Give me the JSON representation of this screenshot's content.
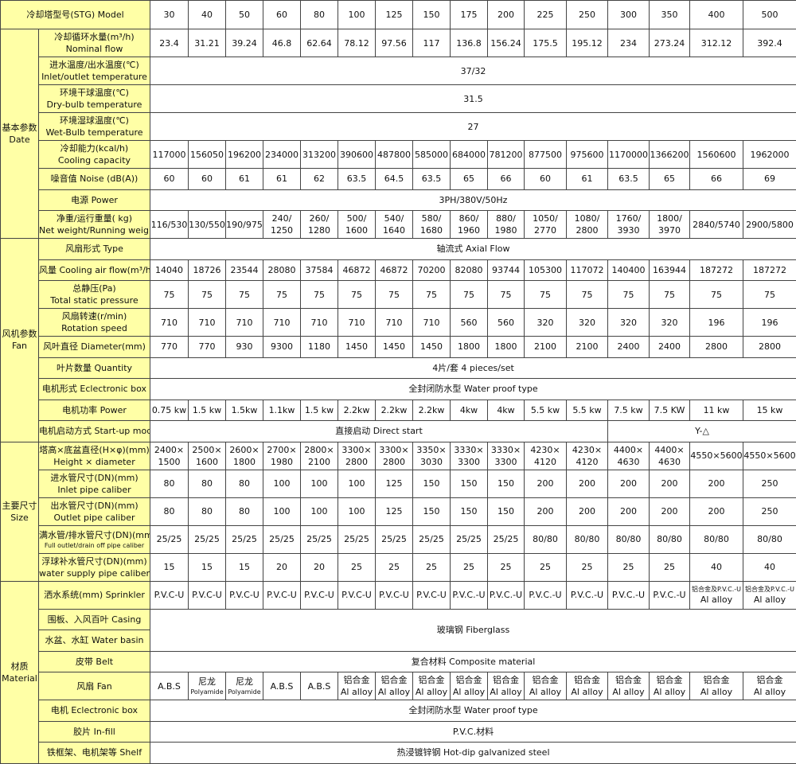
{
  "colors": {
    "label_bg": "#ffffa6",
    "border": "#444444"
  },
  "header": {
    "label": "冷却塔型号(STG) Model",
    "models": [
      "30",
      "40",
      "50",
      "60",
      "80",
      "100",
      "125",
      "150",
      "175",
      "200",
      "225",
      "250",
      "300",
      "350",
      "400",
      "500"
    ]
  },
  "sections": [
    {
      "label": [
        "基本参数",
        "Date"
      ],
      "rows": [
        {
          "label": [
            "冷却循环水量(m³/h)",
            "Nominal flow"
          ],
          "cells": [
            "23.4",
            "31.21",
            "39.24",
            "46.8",
            "62.64",
            "78.12",
            "97.56",
            "117",
            "136.8",
            "156.24",
            "175.5",
            "195.12",
            "234",
            "273.24",
            "312.12",
            "392.4"
          ]
        },
        {
          "label": [
            "进水温度/出水温度(℃)",
            "Inlet/outlet temperature"
          ],
          "cells": [
            {
              "text": "37/32",
              "span": 16
            }
          ]
        },
        {
          "label": [
            "环境干球温度(℃)",
            "Dry-bulb temperature"
          ],
          "cells": [
            {
              "text": "31.5",
              "span": 16
            }
          ]
        },
        {
          "label": [
            "环境湿球温度(℃)",
            "Wet-Bulb temperature"
          ],
          "cells": [
            {
              "text": "27",
              "span": 16
            }
          ]
        },
        {
          "label": [
            "冷却能力(kcal/h)",
            "Cooling capacity"
          ],
          "cells": [
            "117000",
            "156050",
            "196200",
            "234000",
            "313200",
            "390600",
            "487800",
            "585000",
            "684000",
            "781200",
            "877500",
            "975600",
            "1170000",
            "1366200",
            "1560600",
            "1962000"
          ]
        },
        {
          "label": [
            "噪音值 Noise (dB(A))"
          ],
          "cells": [
            "60",
            "60",
            "61",
            "61",
            "62",
            "63.5",
            "64.5",
            "63.5",
            "65",
            "66",
            "60",
            "61",
            "63.5",
            "65",
            "66",
            "69"
          ]
        },
        {
          "label": [
            "电源 Power"
          ],
          "cells": [
            {
              "text": "3PH/380V/50Hz",
              "span": 16
            }
          ]
        },
        {
          "label": [
            "净重/运行重量( kg)",
            "Net weight/Running weight"
          ],
          "cells": [
            "116/530",
            "130/550",
            "190/975",
            [
              "240/",
              "1250"
            ],
            [
              "260/",
              "1280"
            ],
            [
              "500/",
              "1600"
            ],
            [
              "540/",
              "1640"
            ],
            [
              "580/",
              "1680"
            ],
            [
              "860/",
              "1960"
            ],
            [
              "880/",
              "1980"
            ],
            [
              "1050/",
              "2770"
            ],
            [
              "1080/",
              "2800"
            ],
            [
              "1760/",
              "3930"
            ],
            [
              "1800/",
              "3970"
            ],
            "2840/5740",
            "2900/5800"
          ]
        }
      ]
    },
    {
      "label": [
        "风机参数",
        "Fan"
      ],
      "rows": [
        {
          "label": [
            "风扇形式 Type"
          ],
          "cells": [
            {
              "text": "轴流式 Axial Flow",
              "span": 16
            }
          ]
        },
        {
          "label": [
            "风量 Cooling air flow(m³/h)"
          ],
          "cells": [
            "14040",
            "18726",
            "23544",
            "28080",
            "37584",
            "46872",
            "46872",
            "70200",
            "82080",
            "93744",
            "105300",
            "117072",
            "140400",
            "163944",
            "187272",
            "187272"
          ]
        },
        {
          "label": [
            "总静压(Pa)",
            "Total static pressure"
          ],
          "cells": [
            "75",
            "75",
            "75",
            "75",
            "75",
            "75",
            "75",
            "75",
            "75",
            "75",
            "75",
            "75",
            "75",
            "75",
            "75",
            "75"
          ]
        },
        {
          "label": [
            "风扇转速(r/min)",
            "Rotation speed"
          ],
          "cells": [
            "710",
            "710",
            "710",
            "710",
            "710",
            "710",
            "710",
            "710",
            "560",
            "560",
            "320",
            "320",
            "320",
            "320",
            "196",
            "196"
          ]
        },
        {
          "label": [
            "风叶直径 Diameter(mm)"
          ],
          "cells": [
            "770",
            "770",
            "930",
            "9300",
            "1180",
            "1450",
            "1450",
            "1450",
            "1800",
            "1800",
            "2100",
            "2100",
            "2400",
            "2400",
            "2800",
            "2800"
          ]
        },
        {
          "label": [
            "叶片数量 Quantity"
          ],
          "cells": [
            {
              "text": "4片/套 4 pieces/set",
              "span": 16
            }
          ]
        },
        {
          "label": [
            "电机形式 Eclectronic box"
          ],
          "cells": [
            {
              "text": "全封闭防水型 Water proof type",
              "span": 16
            }
          ]
        },
        {
          "label": [
            "电机功率 Power"
          ],
          "cells": [
            "0.75 kw",
            "1.5 kw",
            "1.5kw",
            "1.1kw",
            "1.5 kw",
            "2.2kw",
            "2.2kw",
            "2.2kw",
            "4kw",
            "4kw",
            "5.5 kw",
            "5.5 kw",
            "7.5 kw",
            "7.5 KW",
            "11 kw",
            "15 kw"
          ]
        },
        {
          "label": [
            "电机启动方式 Start-up mode"
          ],
          "cells": [
            {
              "text": "直接启动 Direct start",
              "span": 12
            },
            {
              "text": "Y-△",
              "span": 4
            }
          ]
        }
      ]
    },
    {
      "label": [
        "主要尺寸",
        "Size"
      ],
      "rows": [
        {
          "label": [
            "塔高×底盆直径(H×φ)(mm)",
            "Height × diameter"
          ],
          "cells": [
            [
              "2400×",
              "1500"
            ],
            [
              "2500×",
              "1600"
            ],
            [
              "2600×",
              "1800"
            ],
            [
              "2700×",
              "1980"
            ],
            [
              "2800×",
              "2100"
            ],
            [
              "3300×",
              "2800"
            ],
            [
              "3300×",
              "2800"
            ],
            [
              "3350×",
              "3030"
            ],
            [
              "3330×",
              "3300"
            ],
            [
              "3330×",
              "3300"
            ],
            [
              "4230×",
              "4120"
            ],
            [
              "4230×",
              "4120"
            ],
            [
              "4400×",
              "4630"
            ],
            [
              "4400×",
              "4630"
            ],
            "4550×5600",
            "4550×5600"
          ]
        },
        {
          "label": [
            "进水管尺寸(DN)(mm)",
            "Inlet pipe caliber"
          ],
          "cells": [
            "80",
            "80",
            "80",
            "100",
            "100",
            "100",
            "125",
            "150",
            "150",
            "150",
            "200",
            "200",
            "200",
            "200",
            "200",
            "250"
          ]
        },
        {
          "label": [
            "出水管尺寸(DN)(mm)",
            "Outlet pipe caliber"
          ],
          "cells": [
            "80",
            "80",
            "80",
            "100",
            "100",
            "100",
            "125",
            "150",
            "150",
            "150",
            "200",
            "200",
            "200",
            "200",
            "200",
            "250"
          ]
        },
        {
          "label": [
            "满水管/排水管尺寸(DN)(mm)",
            "Full outlet/drain off pipe caliber"
          ],
          "cells": [
            "25/25",
            "25/25",
            "25/25",
            "25/25",
            "25/25",
            "25/25",
            "25/25",
            "25/25",
            "25/25",
            "25/25",
            "80/80",
            "80/80",
            "80/80",
            "80/80",
            "80/80",
            "80/80"
          ]
        },
        {
          "label": [
            "浮球补水管尺寸(DN)(mm)",
            "water supply pipe caliber"
          ],
          "cells": [
            "15",
            "15",
            "15",
            "20",
            "20",
            "25",
            "25",
            "25",
            "25",
            "25",
            "25",
            "25",
            "25",
            "25",
            "40",
            "40"
          ]
        }
      ]
    },
    {
      "label": [
        "材质",
        "Material"
      ],
      "rows": [
        {
          "label": [
            "洒水系统(mm) Sprinkler"
          ],
          "cells": [
            "P.V.C-U",
            "P.V.C-U",
            "P.V.C-U",
            "P.V.C-U",
            "P.V.C-U",
            "P.V.C-U",
            "P.V.C-U",
            "P.V.C-U",
            "P.V.C.-U",
            "P.V.C.-U",
            "P.V.C.-U",
            "P.V.C.-U",
            "P.V.C.-U",
            "P.V.C.-U",
            [
              "铝合金及P.V.C.-U",
              "Al alloy"
            ],
            [
              "铝合金及P.V.C.-U",
              "Al alloy"
            ]
          ]
        },
        {
          "label": [
            "围板、入风百叶 Casing"
          ],
          "cells": [
            {
              "text": "玻璃钢 Fiberglass",
              "span": 16,
              "rowspan": 2
            }
          ]
        },
        {
          "label": [
            "水盆、水缸 Water basin"
          ],
          "cells": []
        },
        {
          "label": [
            "皮带 Belt"
          ],
          "cells": [
            {
              "text": "复合材料 Composite material",
              "span": 16
            }
          ]
        },
        {
          "label": [
            "风扇 Fan"
          ],
          "cells": [
            "A.B.S",
            [
              "尼龙",
              "Polyamide"
            ],
            [
              "尼龙",
              "Polyamide"
            ],
            "A.B.S",
            "A.B.S",
            [
              "铝合金",
              "Al alloy"
            ],
            [
              "铝合金",
              "Al alloy"
            ],
            [
              "铝合金",
              "Al alloy"
            ],
            [
              "铝合金",
              "Al alloy"
            ],
            [
              "铝合金",
              "Al alloy"
            ],
            [
              "铝合金",
              "Al alloy"
            ],
            [
              "铝合金",
              "Al alloy"
            ],
            [
              "铝合金",
              "Al alloy"
            ],
            [
              "铝合金",
              "Al alloy"
            ],
            [
              "铝合金",
              "Al alloy"
            ],
            [
              "铝合金",
              "Al alloy"
            ]
          ]
        },
        {
          "label": [
            "电机 Eclectronic box"
          ],
          "cells": [
            {
              "text": "全封闭防水型 Water proof type",
              "span": 16
            }
          ]
        },
        {
          "label": [
            "胶片 In-fill"
          ],
          "cells": [
            {
              "text": "P.V.C.材料",
              "span": 16
            }
          ]
        },
        {
          "label": [
            "铁框架、电机架等 Shelf"
          ],
          "cells": [
            {
              "text": "热浸镀锌钢 Hot-dip galvanized steel",
              "span": 16
            }
          ]
        }
      ]
    }
  ]
}
